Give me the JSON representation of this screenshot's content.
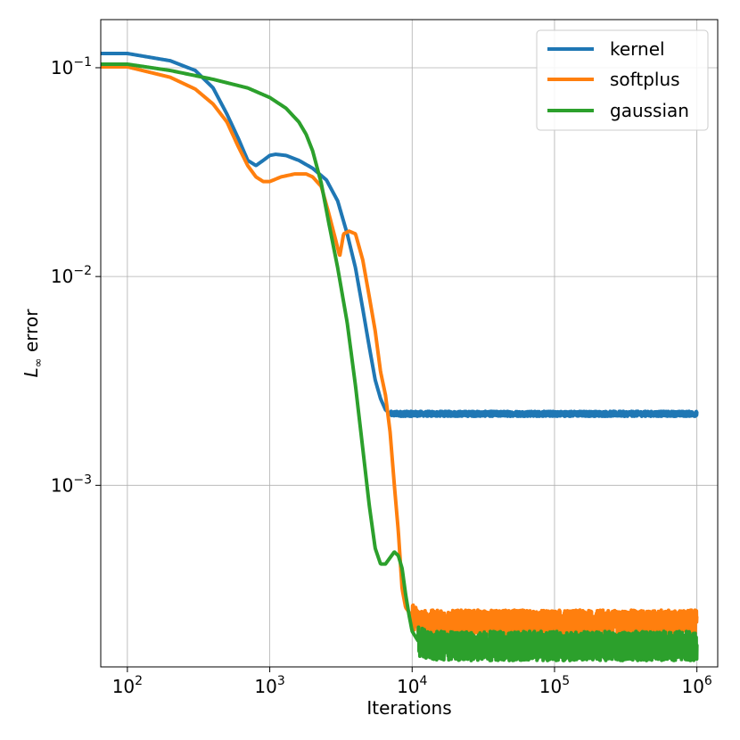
{
  "chart_data": {
    "type": "line",
    "title": "",
    "xlabel": "Iterations",
    "ylabel_main": "L",
    "ylabel_sub": "∞",
    "ylabel_rest": " error",
    "xscale": "log",
    "yscale": "log",
    "xlim": [
      65,
      1400000
    ],
    "ylim": [
      0.000135,
      0.17
    ],
    "grid": true,
    "legend_position": "top-right",
    "x_ticks": [
      {
        "value": 100,
        "base": "10",
        "exp": "2"
      },
      {
        "value": 1000,
        "base": "10",
        "exp": "3"
      },
      {
        "value": 10000,
        "base": "10",
        "exp": "4"
      },
      {
        "value": 100000,
        "base": "10",
        "exp": "5"
      },
      {
        "value": 1000000,
        "base": "10",
        "exp": "6"
      }
    ],
    "y_ticks": [
      {
        "value": 0.1,
        "base": "10",
        "exp": "−1"
      },
      {
        "value": 0.01,
        "base": "10",
        "exp": "−2"
      },
      {
        "value": 0.001,
        "base": "10",
        "exp": "−3"
      }
    ],
    "series": [
      {
        "name": "kernel",
        "color": "#1f77b4",
        "points": [
          [
            65,
            0.117
          ],
          [
            100,
            0.117
          ],
          [
            200,
            0.108
          ],
          [
            300,
            0.097
          ],
          [
            400,
            0.08
          ],
          [
            500,
            0.06
          ],
          [
            600,
            0.046
          ],
          [
            700,
            0.036
          ],
          [
            800,
            0.034
          ],
          [
            900,
            0.036
          ],
          [
            1000,
            0.038
          ],
          [
            1100,
            0.0385
          ],
          [
            1300,
            0.038
          ],
          [
            1600,
            0.036
          ],
          [
            2000,
            0.033
          ],
          [
            2500,
            0.029
          ],
          [
            3000,
            0.023
          ],
          [
            3500,
            0.016
          ],
          [
            4000,
            0.011
          ],
          [
            4500,
            0.007
          ],
          [
            5000,
            0.0046
          ],
          [
            5500,
            0.0032
          ],
          [
            6000,
            0.0026
          ],
          [
            6500,
            0.0023
          ],
          [
            7000,
            0.0022
          ],
          [
            8000,
            0.0022
          ],
          [
            10000,
            0.0022
          ],
          [
            100000,
            0.0022
          ],
          [
            1000000,
            0.0022
          ]
        ],
        "noise_from": 7000,
        "noise_amp": 0.012
      },
      {
        "name": "softplus",
        "color": "#ff7f0e",
        "points": [
          [
            65,
            0.101
          ],
          [
            100,
            0.101
          ],
          [
            200,
            0.09
          ],
          [
            300,
            0.079
          ],
          [
            400,
            0.067
          ],
          [
            500,
            0.055
          ],
          [
            600,
            0.042
          ],
          [
            700,
            0.034
          ],
          [
            800,
            0.03
          ],
          [
            900,
            0.0285
          ],
          [
            1000,
            0.0285
          ],
          [
            1200,
            0.03
          ],
          [
            1500,
            0.031
          ],
          [
            1800,
            0.031
          ],
          [
            2000,
            0.03
          ],
          [
            2300,
            0.027
          ],
          [
            2600,
            0.02
          ],
          [
            2900,
            0.015
          ],
          [
            3100,
            0.0125
          ],
          [
            3300,
            0.016
          ],
          [
            3600,
            0.0165
          ],
          [
            4000,
            0.016
          ],
          [
            4500,
            0.012
          ],
          [
            5000,
            0.008
          ],
          [
            5500,
            0.0055
          ],
          [
            6000,
            0.0035
          ],
          [
            6500,
            0.0027
          ],
          [
            7000,
            0.0018
          ],
          [
            7500,
            0.001
          ],
          [
            8000,
            0.0006
          ],
          [
            8500,
            0.00032
          ],
          [
            9000,
            0.00026
          ],
          [
            10000,
            0.000235
          ],
          [
            12000,
            0.00022
          ],
          [
            20000,
            0.00022
          ],
          [
            100000,
            0.00022
          ],
          [
            1000000,
            0.00022
          ]
        ],
        "noise_from": 10000,
        "noise_amp": 0.06
      },
      {
        "name": "gaussian",
        "color": "#2ca02c",
        "points": [
          [
            65,
            0.104
          ],
          [
            100,
            0.104
          ],
          [
            200,
            0.097
          ],
          [
            400,
            0.088
          ],
          [
            700,
            0.08
          ],
          [
            1000,
            0.072
          ],
          [
            1300,
            0.064
          ],
          [
            1600,
            0.055
          ],
          [
            1800,
            0.048
          ],
          [
            2000,
            0.04
          ],
          [
            2300,
            0.028
          ],
          [
            2600,
            0.018
          ],
          [
            3000,
            0.011
          ],
          [
            3500,
            0.006
          ],
          [
            4000,
            0.003
          ],
          [
            4500,
            0.0015
          ],
          [
            5000,
            0.0008
          ],
          [
            5500,
            0.0005
          ],
          [
            6000,
            0.00042
          ],
          [
            6500,
            0.00042
          ],
          [
            7000,
            0.00045
          ],
          [
            7500,
            0.00048
          ],
          [
            8000,
            0.00046
          ],
          [
            8500,
            0.0004
          ],
          [
            9000,
            0.0003
          ],
          [
            9500,
            0.00024
          ],
          [
            10000,
            0.0002
          ],
          [
            11000,
            0.00018
          ],
          [
            13000,
            0.00017
          ],
          [
            20000,
            0.00017
          ],
          [
            100000,
            0.00017
          ],
          [
            1000000,
            0.00017
          ]
        ],
        "noise_from": 11000,
        "noise_amp": 0.07
      }
    ]
  }
}
